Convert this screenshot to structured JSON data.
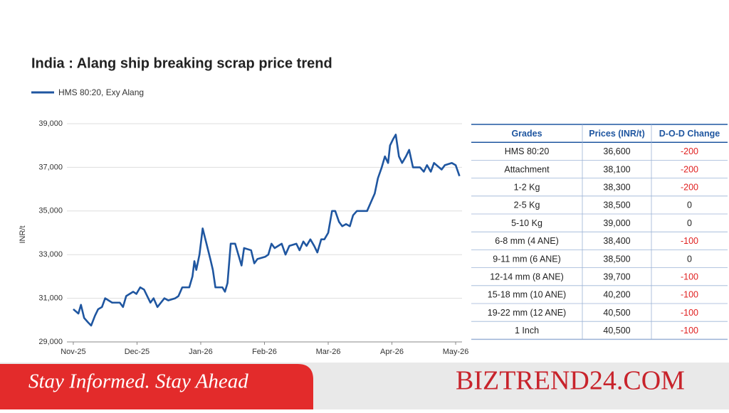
{
  "chart_data": {
    "type": "line",
    "title": "India : Alang ship breaking scrap price trend",
    "y_label": "INR/t",
    "xlim": [
      -0.1,
      6.1
    ],
    "xticks": [
      {
        "value": 0,
        "label": "Nov-25"
      },
      {
        "value": 1,
        "label": "Dec-25"
      },
      {
        "value": 2,
        "label": "Jan-26"
      },
      {
        "value": 3,
        "label": "Feb-26"
      },
      {
        "value": 4,
        "label": "Mar-26"
      },
      {
        "value": 5,
        "label": "Apr-26"
      },
      {
        "value": 6,
        "label": "May-26"
      }
    ],
    "ylim": [
      29000,
      39000
    ],
    "yticks": [
      {
        "value": 29000,
        "label": "29,000"
      },
      {
        "value": 31000,
        "label": "31,000"
      },
      {
        "value": 33000,
        "label": "33,000"
      },
      {
        "value": 35000,
        "label": "35,000"
      },
      {
        "value": 37000,
        "label": "37,000"
      },
      {
        "value": 39000,
        "label": "39,000"
      }
    ],
    "grid": true,
    "legend": "top-left",
    "x": [
      0,
      0.08,
      0.12,
      0.17,
      0.23,
      0.28,
      0.34,
      0.39,
      0.45,
      0.5,
      0.61,
      0.73,
      0.78,
      0.83,
      0.94,
      0.99,
      1.05,
      1.11,
      1.16,
      1.21,
      1.26,
      1.32,
      1.43,
      1.49,
      1.6,
      1.65,
      1.71,
      1.82,
      1.87,
      1.9,
      1.93,
      1.98,
      2.03,
      2.09,
      2.15,
      2.19,
      2.23,
      2.34,
      2.38,
      2.42,
      2.47,
      2.54,
      2.59,
      2.64,
      2.68,
      2.79,
      2.84,
      2.89,
      3.01,
      3.06,
      3.11,
      3.16,
      3.27,
      3.33,
      3.39,
      3.5,
      3.55,
      3.61,
      3.66,
      3.72,
      3.78,
      3.83,
      3.89,
      3.94,
      4.0,
      4.06,
      4.11,
      4.17,
      4.22,
      4.28,
      4.34,
      4.39,
      4.45,
      4.61,
      4.67,
      4.73,
      4.78,
      4.84,
      4.89,
      4.94,
      4.97,
      5.02,
      5.06,
      5.11,
      5.16,
      5.22,
      5.27,
      5.33,
      5.44,
      5.5,
      5.55,
      5.61,
      5.66,
      5.78,
      5.83,
      5.94,
      6.0,
      6.06
    ],
    "series": [
      {
        "name": "HMS 80:20, Exy Alang",
        "color": "#1f56a0",
        "values": [
          30500,
          30300,
          30700,
          30100,
          29900,
          29750,
          30200,
          30500,
          30600,
          31000,
          30800,
          30800,
          30600,
          31100,
          31300,
          31200,
          31500,
          31400,
          31100,
          30800,
          31000,
          30600,
          31000,
          30900,
          31000,
          31100,
          31500,
          31500,
          32000,
          32700,
          32300,
          33000,
          34200,
          33500,
          32800,
          32300,
          31500,
          31500,
          31300,
          31700,
          33500,
          33500,
          33000,
          32500,
          33300,
          33200,
          32600,
          32800,
          32900,
          33000,
          33500,
          33300,
          33500,
          33000,
          33400,
          33500,
          33200,
          33600,
          33400,
          33700,
          33400,
          33100,
          33700,
          33700,
          34000,
          35000,
          35000,
          34500,
          34300,
          34400,
          34300,
          34800,
          35000,
          35000,
          35400,
          35800,
          36500,
          37000,
          37500,
          37200,
          38000,
          38300,
          38500,
          37500,
          37200,
          37500,
          37800,
          37000,
          37000,
          36800,
          37100,
          36800,
          37200,
          36900,
          37100,
          37200,
          37100,
          36600
        ]
      }
    ]
  },
  "table": {
    "header": [
      "Grades",
      "Prices (INR/t)",
      "D-O-D Change"
    ],
    "rows": [
      [
        "HMS 80:20",
        "36,600",
        "-200"
      ],
      [
        "Attachment",
        "38,100",
        "-200"
      ],
      [
        "1-2 Kg",
        "38,300",
        "-200"
      ],
      [
        "2-5 Kg",
        "38,500",
        "0"
      ],
      [
        "5-10 Kg",
        "39,000",
        "0"
      ],
      [
        "6-8 mm (4 ANE)",
        "38,400",
        "-100"
      ],
      [
        "9-11 mm (6 ANE)",
        "38,500",
        "0"
      ],
      [
        "12-14 mm (8 ANE)",
        "39,700",
        "-100"
      ],
      [
        "15-18 mm (10 ANE)",
        "40,200",
        "-100"
      ],
      [
        "19-22 mm (12 ANE)",
        "40,500",
        "-100"
      ],
      [
        "1 Inch",
        "40,500",
        "-100"
      ]
    ]
  },
  "banner": {
    "tagline": "Stay Informed. Stay Ahead",
    "brand": "BIZTREND24.COM"
  }
}
